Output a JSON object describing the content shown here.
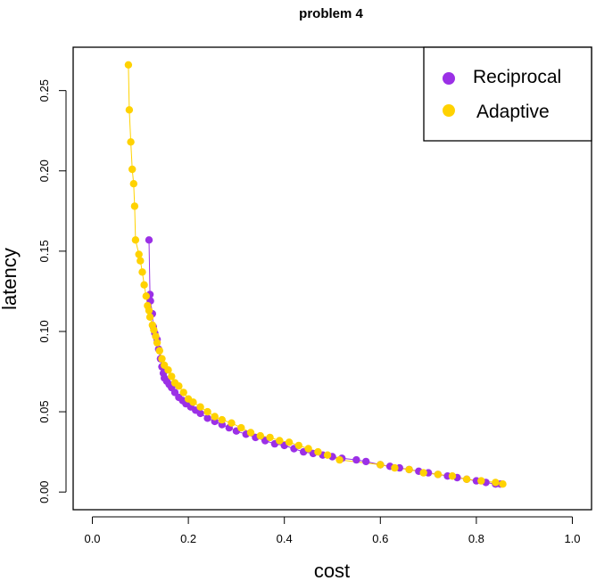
{
  "chart_data": {
    "type": "scatter",
    "title": "problem 4",
    "xlabel": "cost",
    "ylabel": "latency",
    "xlim": [
      -0.04,
      1.04
    ],
    "ylim": [
      -0.011,
      0.277
    ],
    "xticks": [
      "0.0",
      "0.2",
      "0.4",
      "0.6",
      "0.8",
      "1.0"
    ],
    "yticks": [
      "0.00",
      "0.05",
      "0.10",
      "0.15",
      "0.20",
      "0.25"
    ],
    "grid": false,
    "legend": "top-right",
    "series": [
      {
        "name": "Reciprocal",
        "color": "#9b30e6",
        "points": [
          [
            0.118,
            0.157
          ],
          [
            0.12,
            0.123
          ],
          [
            0.121,
            0.119
          ],
          [
            0.125,
            0.111
          ],
          [
            0.127,
            0.103
          ],
          [
            0.13,
            0.099
          ],
          [
            0.135,
            0.095
          ],
          [
            0.138,
            0.089
          ],
          [
            0.142,
            0.083
          ],
          [
            0.145,
            0.078
          ],
          [
            0.148,
            0.074
          ],
          [
            0.15,
            0.071
          ],
          [
            0.155,
            0.069
          ],
          [
            0.16,
            0.067
          ],
          [
            0.165,
            0.065
          ],
          [
            0.172,
            0.062
          ],
          [
            0.18,
            0.059
          ],
          [
            0.188,
            0.057
          ],
          [
            0.195,
            0.055
          ],
          [
            0.205,
            0.053
          ],
          [
            0.215,
            0.051
          ],
          [
            0.225,
            0.049
          ],
          [
            0.24,
            0.046
          ],
          [
            0.255,
            0.044
          ],
          [
            0.27,
            0.042
          ],
          [
            0.285,
            0.04
          ],
          [
            0.3,
            0.038
          ],
          [
            0.32,
            0.036
          ],
          [
            0.34,
            0.034
          ],
          [
            0.36,
            0.032
          ],
          [
            0.38,
            0.03
          ],
          [
            0.4,
            0.029
          ],
          [
            0.42,
            0.027
          ],
          [
            0.44,
            0.025
          ],
          [
            0.46,
            0.024
          ],
          [
            0.48,
            0.023
          ],
          [
            0.5,
            0.022
          ],
          [
            0.52,
            0.021
          ],
          [
            0.55,
            0.02
          ],
          [
            0.57,
            0.019
          ],
          [
            0.6,
            0.017
          ],
          [
            0.62,
            0.016
          ],
          [
            0.64,
            0.015
          ],
          [
            0.66,
            0.014
          ],
          [
            0.68,
            0.013
          ],
          [
            0.7,
            0.012
          ],
          [
            0.72,
            0.011
          ],
          [
            0.74,
            0.01
          ],
          [
            0.76,
            0.009
          ],
          [
            0.78,
            0.008
          ],
          [
            0.8,
            0.007
          ],
          [
            0.82,
            0.006
          ],
          [
            0.84,
            0.005
          ],
          [
            0.85,
            0.005
          ]
        ]
      },
      {
        "name": "Adaptive",
        "color": "#ffd200",
        "points": [
          [
            0.075,
            0.266
          ],
          [
            0.077,
            0.238
          ],
          [
            0.08,
            0.218
          ],
          [
            0.083,
            0.201
          ],
          [
            0.086,
            0.192
          ],
          [
            0.088,
            0.178
          ],
          [
            0.09,
            0.157
          ],
          [
            0.097,
            0.148
          ],
          [
            0.1,
            0.144
          ],
          [
            0.104,
            0.137
          ],
          [
            0.108,
            0.129
          ],
          [
            0.112,
            0.122
          ],
          [
            0.115,
            0.116
          ],
          [
            0.118,
            0.113
          ],
          [
            0.12,
            0.109
          ],
          [
            0.125,
            0.104
          ],
          [
            0.128,
            0.101
          ],
          [
            0.132,
            0.097
          ],
          [
            0.135,
            0.093
          ],
          [
            0.14,
            0.088
          ],
          [
            0.145,
            0.083
          ],
          [
            0.15,
            0.079
          ],
          [
            0.158,
            0.076
          ],
          [
            0.165,
            0.072
          ],
          [
            0.172,
            0.068
          ],
          [
            0.18,
            0.066
          ],
          [
            0.19,
            0.062
          ],
          [
            0.2,
            0.058
          ],
          [
            0.21,
            0.056
          ],
          [
            0.225,
            0.053
          ],
          [
            0.24,
            0.05
          ],
          [
            0.255,
            0.047
          ],
          [
            0.27,
            0.045
          ],
          [
            0.29,
            0.043
          ],
          [
            0.31,
            0.04
          ],
          [
            0.33,
            0.037
          ],
          [
            0.35,
            0.035
          ],
          [
            0.37,
            0.034
          ],
          [
            0.39,
            0.032
          ],
          [
            0.41,
            0.031
          ],
          [
            0.43,
            0.029
          ],
          [
            0.45,
            0.027
          ],
          [
            0.47,
            0.025
          ],
          [
            0.49,
            0.023
          ],
          [
            0.515,
            0.02
          ],
          [
            0.6,
            0.017
          ],
          [
            0.63,
            0.015
          ],
          [
            0.66,
            0.014
          ],
          [
            0.69,
            0.012
          ],
          [
            0.72,
            0.011
          ],
          [
            0.75,
            0.01
          ],
          [
            0.78,
            0.008
          ],
          [
            0.81,
            0.007
          ],
          [
            0.84,
            0.006
          ],
          [
            0.855,
            0.005
          ]
        ]
      }
    ]
  }
}
